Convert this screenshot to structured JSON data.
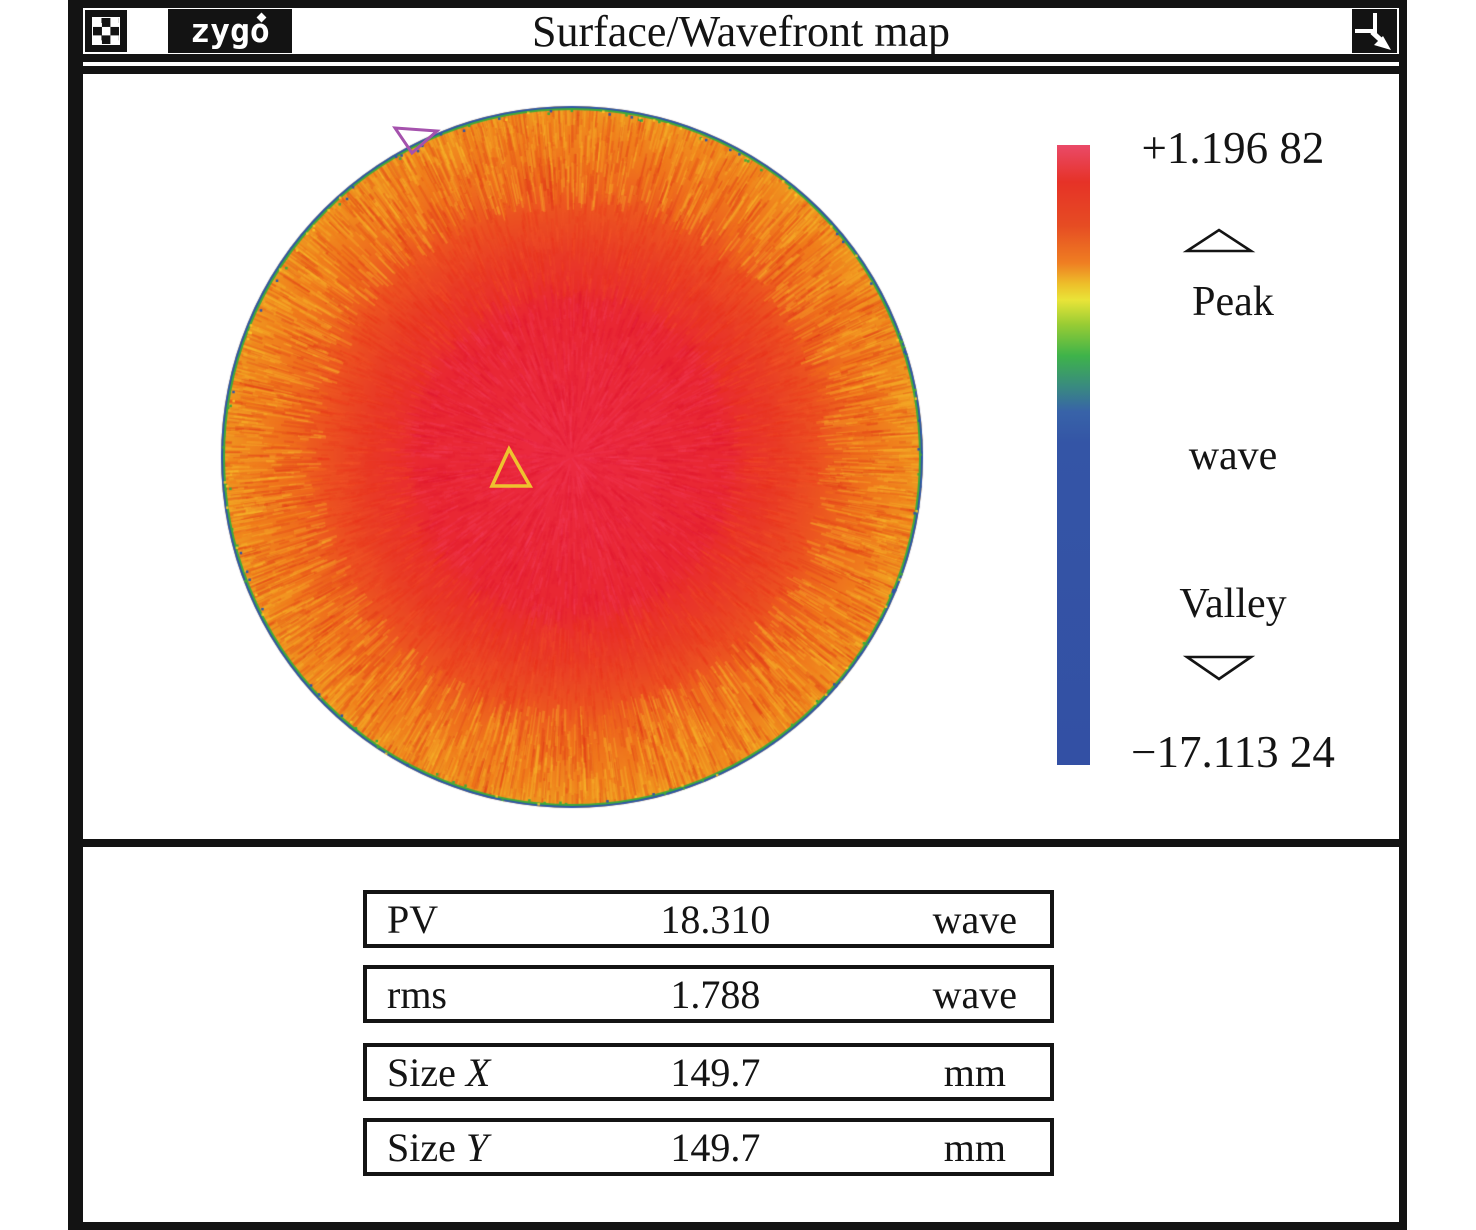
{
  "window": {
    "titlebar": {
      "logo_text": "zygo",
      "title": "Surface/Wavefront map"
    }
  },
  "legend": {
    "max_value": "+1.196 82",
    "peak_label": "Peak",
    "unit": "wave",
    "valley_label": "Valley",
    "min_value": "−17.113 24",
    "scale_colors": [
      [
        0,
        "#ea4a68"
      ],
      [
        0.06,
        "#e63227"
      ],
      [
        0.13,
        "#e64c23"
      ],
      [
        0.19,
        "#ef7e22"
      ],
      [
        0.225,
        "#edc02a"
      ],
      [
        0.25,
        "#e9e438"
      ],
      [
        0.29,
        "#97cc34"
      ],
      [
        0.34,
        "#3eb34a"
      ],
      [
        0.39,
        "#398a80"
      ],
      [
        0.43,
        "#3863a8"
      ],
      [
        0.48,
        "#3455a6"
      ],
      [
        1,
        "#3350a4"
      ]
    ]
  },
  "map": {
    "gradient": [
      [
        0,
        "#ec2a42"
      ],
      [
        0.42,
        "#e92732"
      ],
      [
        0.58,
        "#e93a26"
      ],
      [
        0.72,
        "#ec5520"
      ],
      [
        0.84,
        "#ef731d"
      ],
      [
        0.93,
        "#f0871e"
      ],
      [
        1,
        "#ee9a20"
      ]
    ],
    "colors": {
      "rim_green": "#3faa3a",
      "rim_blue": "#2d55a8",
      "peak_marker": "#eec32f",
      "valley_marker": "#a552ad"
    }
  },
  "stats": {
    "rows": [
      {
        "label": "PV",
        "label_italic": "",
        "value": "18.310",
        "unit": "wave"
      },
      {
        "label": "rms",
        "label_italic": "",
        "value": "1.788",
        "unit": "wave"
      },
      {
        "label": "Size ",
        "label_italic": "X",
        "value": "149.7",
        "unit": "mm"
      },
      {
        "label": "Size ",
        "label_italic": "Y",
        "value": "149.7",
        "unit": "mm"
      }
    ]
  },
  "chart_data": {
    "type": "heatmap",
    "title": "Surface/Wavefront map",
    "unit": "wave",
    "scale_max": 1.19682,
    "scale_min": -17.11324,
    "shape": "circular",
    "stats": {
      "PV_wave": 18.31,
      "rms_wave": 1.788,
      "size_x_mm": 149.7,
      "size_y_mm": 149.7
    },
    "description": "Circular wavefront map: red/crimson center grading radially to orange near the rim with thin green then blue edge; yellow peak marker triangle near center, purple valley marker triangle at upper-left rim"
  }
}
